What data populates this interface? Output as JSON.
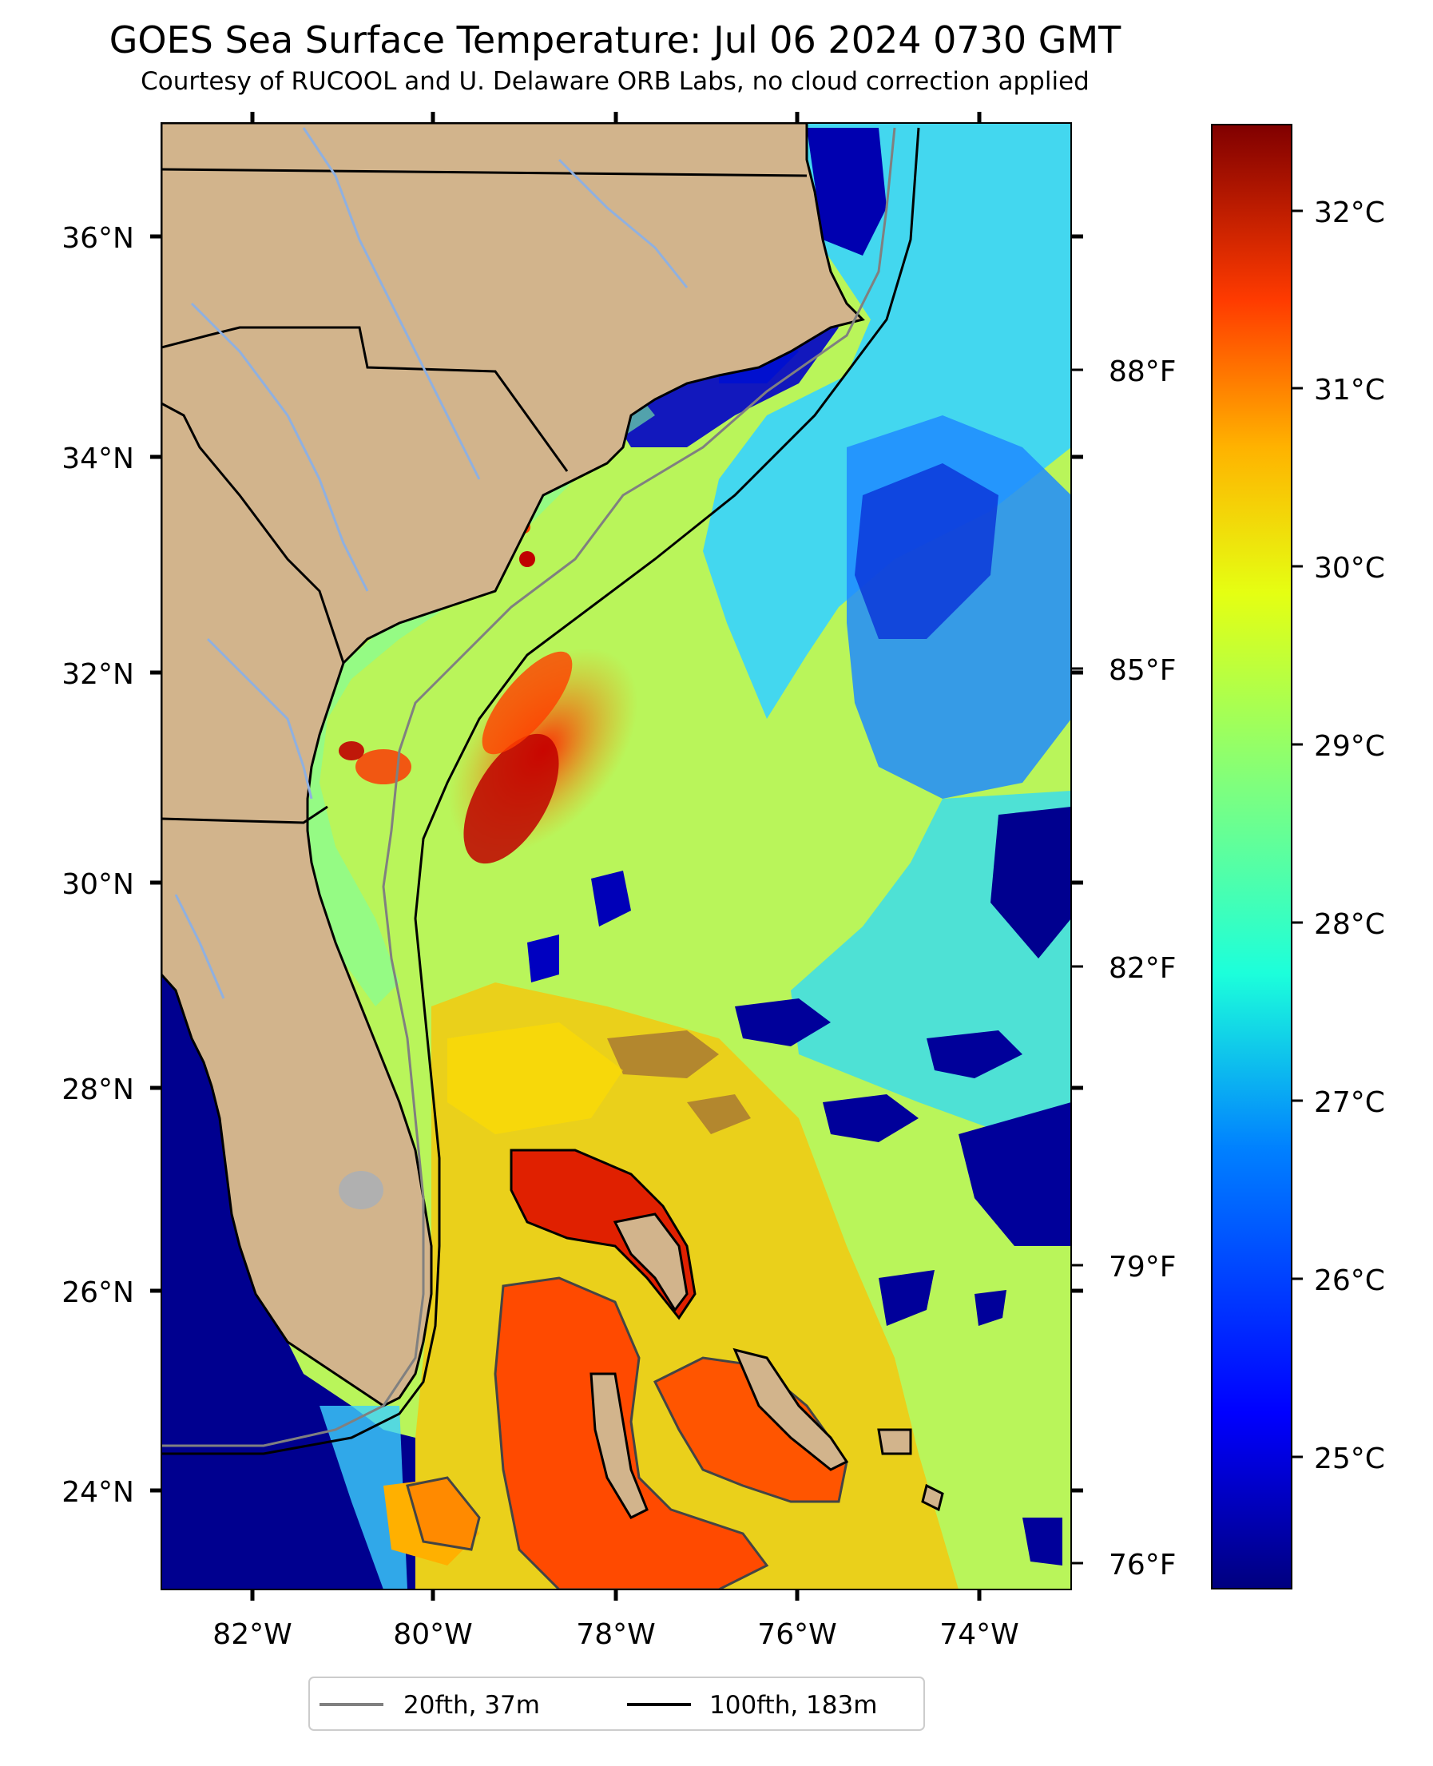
{
  "title": "GOES Sea Surface Temperature: Jul 06 2024 0730 GMT",
  "subtitle": "Courtesy of RUCOOL and U. Delaware ORB Labs, no cloud correction applied",
  "lat_labels": [
    "36°N",
    "34°N",
    "32°N",
    "30°N",
    "28°N",
    "26°N",
    "24°N"
  ],
  "lon_labels": [
    "82°W",
    "80°W",
    "78°W",
    "76°W",
    "74°W"
  ],
  "colorbar": {
    "celsius_labels": [
      "32°C",
      "31°C",
      "30°C",
      "29°C",
      "28°C",
      "27°C",
      "26°C",
      "25°C"
    ],
    "fahrenheit_labels": [
      "88°F",
      "85°F",
      "82°F",
      "79°F",
      "76°F"
    ]
  },
  "legend": [
    {
      "label": "20fth, 37m",
      "color": "#808080"
    },
    {
      "label": "100fth, 183m",
      "color": "#000000"
    }
  ],
  "colors": {
    "land": "#d2b48c",
    "ocean_cold": "#00008f",
    "ocean_warm": "#ff2a00",
    "colorbar_top": "#800000",
    "colorbar_bottom": "#00007f"
  }
}
